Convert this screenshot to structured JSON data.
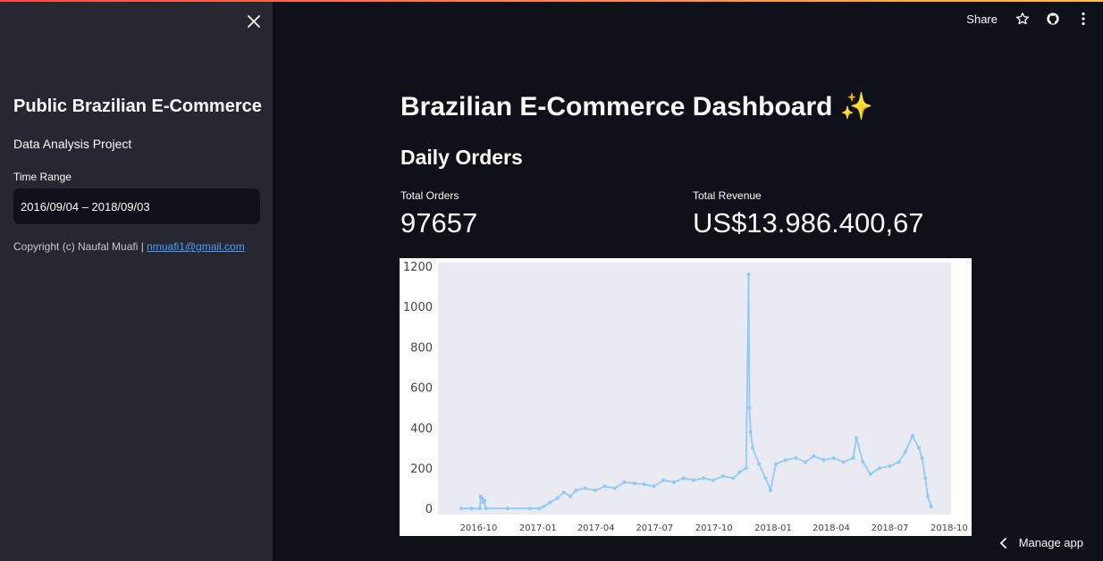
{
  "sidebar": {
    "title": "Public Brazilian E-Commerce",
    "subtitle": "Data Analysis Project",
    "time_range_label": "Time Range",
    "time_range_value": "2016/09/04 – 2018/09/03",
    "copyright_text": "Copyright (c) Naufal Muafi | ",
    "copyright_email": "nmuafi1@gmail.com"
  },
  "header": {
    "share_label": "Share",
    "star_icon": "star-icon",
    "github_icon": "github-icon",
    "menu_icon": "kebab-menu-icon"
  },
  "main": {
    "title": "Brazilian E-Commerce Dashboard ✨",
    "section_title": "Daily Orders",
    "metrics": [
      {
        "label": "Total Orders",
        "value": "97657"
      },
      {
        "label": "Total Revenue",
        "value": "US$13.986.400,67"
      }
    ]
  },
  "footer": {
    "manage_app_label": "Manage app"
  },
  "colors": {
    "sidebar_bg": "#262730",
    "main_bg": "#0e1117",
    "line": "#90caf9",
    "plot_bg": "#eaeaf2",
    "link": "#4d9bff"
  },
  "chart_data": {
    "type": "line",
    "title": "",
    "xlabel": "",
    "ylabel": "",
    "ylim": [
      -30,
      1200
    ],
    "yticks": [
      0,
      200,
      400,
      600,
      800,
      1000,
      1200
    ],
    "xticks": [
      "2016-10",
      "2017-01",
      "2017-04",
      "2017-07",
      "2017-10",
      "2018-01",
      "2018-04",
      "2018-07",
      "2018-10"
    ],
    "xlim": [
      "2016-09-04",
      "2018-10-15"
    ],
    "grid": false,
    "series": [
      {
        "points": [
          [
            "2016-09-04",
            0
          ],
          [
            "2016-09-20",
            0
          ],
          [
            "2016-10-03",
            0
          ],
          [
            "2016-10-04",
            60
          ],
          [
            "2016-10-06",
            50
          ],
          [
            "2016-10-08",
            30
          ],
          [
            "2016-10-10",
            40
          ],
          [
            "2016-10-12",
            0
          ],
          [
            "2016-11-15",
            0
          ],
          [
            "2016-12-20",
            0
          ],
          [
            "2017-01-03",
            0
          ],
          [
            "2017-01-10",
            10
          ],
          [
            "2017-01-20",
            30
          ],
          [
            "2017-01-31",
            50
          ],
          [
            "2017-02-10",
            80
          ],
          [
            "2017-02-20",
            60
          ],
          [
            "2017-03-01",
            90
          ],
          [
            "2017-03-15",
            100
          ],
          [
            "2017-03-31",
            90
          ],
          [
            "2017-04-15",
            110
          ],
          [
            "2017-04-30",
            100
          ],
          [
            "2017-05-15",
            130
          ],
          [
            "2017-05-31",
            125
          ],
          [
            "2017-06-15",
            120
          ],
          [
            "2017-06-30",
            110
          ],
          [
            "2017-07-15",
            140
          ],
          [
            "2017-07-31",
            130
          ],
          [
            "2017-08-15",
            150
          ],
          [
            "2017-08-31",
            140
          ],
          [
            "2017-09-15",
            150
          ],
          [
            "2017-09-30",
            140
          ],
          [
            "2017-10-15",
            160
          ],
          [
            "2017-10-31",
            150
          ],
          [
            "2017-11-10",
            180
          ],
          [
            "2017-11-20",
            200
          ],
          [
            "2017-11-24",
            1160
          ],
          [
            "2017-11-25",
            500
          ],
          [
            "2017-11-27",
            380
          ],
          [
            "2017-11-30",
            300
          ],
          [
            "2017-12-10",
            220
          ],
          [
            "2017-12-20",
            150
          ],
          [
            "2017-12-28",
            90
          ],
          [
            "2018-01-05",
            220
          ],
          [
            "2018-01-20",
            240
          ],
          [
            "2018-02-05",
            250
          ],
          [
            "2018-02-20",
            230
          ],
          [
            "2018-03-05",
            260
          ],
          [
            "2018-03-20",
            240
          ],
          [
            "2018-04-05",
            250
          ],
          [
            "2018-04-20",
            230
          ],
          [
            "2018-05-05",
            250
          ],
          [
            "2018-05-10",
            350
          ],
          [
            "2018-05-20",
            230
          ],
          [
            "2018-06-01",
            170
          ],
          [
            "2018-06-15",
            200
          ],
          [
            "2018-07-01",
            210
          ],
          [
            "2018-07-15",
            230
          ],
          [
            "2018-07-25",
            280
          ],
          [
            "2018-08-05",
            360
          ],
          [
            "2018-08-15",
            300
          ],
          [
            "2018-08-20",
            250
          ],
          [
            "2018-08-25",
            150
          ],
          [
            "2018-08-29",
            60
          ],
          [
            "2018-09-03",
            10
          ]
        ]
      }
    ]
  }
}
